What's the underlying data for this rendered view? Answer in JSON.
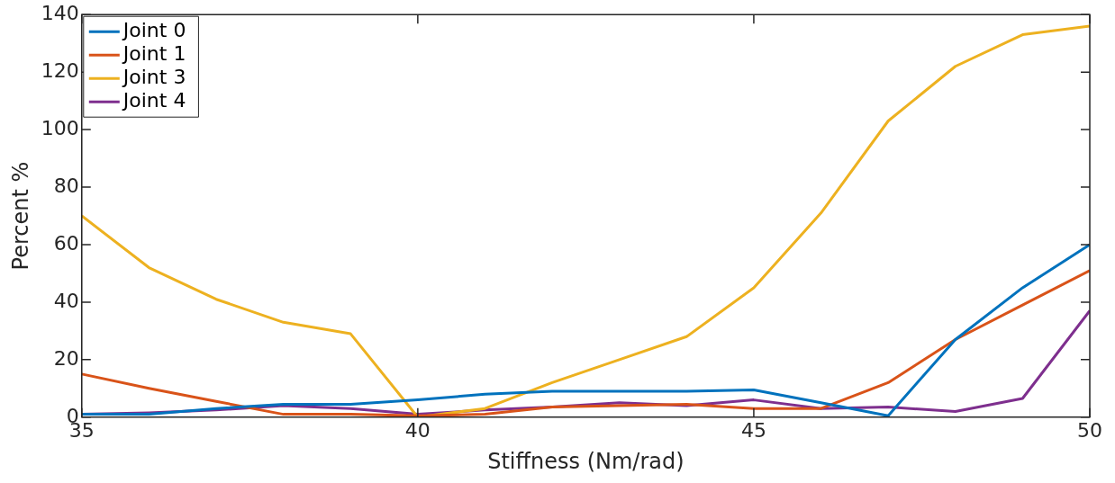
{
  "chart_data": {
    "type": "line",
    "xlabel": "Stiffness (Nm/rad)",
    "ylabel": "Percent %",
    "x": [
      35,
      36,
      37,
      38,
      39,
      40,
      41,
      42,
      43,
      44,
      45,
      46,
      47,
      48,
      49,
      50
    ],
    "series": [
      {
        "name": "Joint 0",
        "color": "#0072bd",
        "values": [
          1,
          1,
          3,
          4.5,
          4.5,
          6,
          8,
          9,
          9,
          9,
          9.5,
          5,
          0.5,
          27,
          45,
          60
        ]
      },
      {
        "name": "Joint 1",
        "color": "#d95319",
        "values": [
          15,
          10,
          5.5,
          1,
          1,
          0.5,
          1,
          3.5,
          4,
          4.5,
          3,
          3,
          12,
          27,
          39,
          51
        ]
      },
      {
        "name": "Joint 3",
        "color": "#edb120",
        "values": [
          70,
          52,
          41,
          33,
          29,
          0,
          3,
          12,
          20,
          28,
          45,
          71,
          103,
          122,
          133,
          136
        ]
      },
      {
        "name": "Joint 4",
        "color": "#7e2f8e",
        "values": [
          1,
          1.5,
          2.5,
          4,
          3,
          1,
          2.5,
          3.5,
          5,
          4,
          6,
          3,
          3.5,
          2,
          6.5,
          37
        ]
      }
    ],
    "xlim": [
      35,
      50
    ],
    "xticks": [
      35,
      40,
      45,
      50
    ],
    "ylim": [
      0,
      140
    ],
    "yticks": [
      0,
      20,
      40,
      60,
      80,
      100,
      120,
      140
    ],
    "grid": false,
    "legend": "top left",
    "marker": "none",
    "line_style": "solid"
  }
}
